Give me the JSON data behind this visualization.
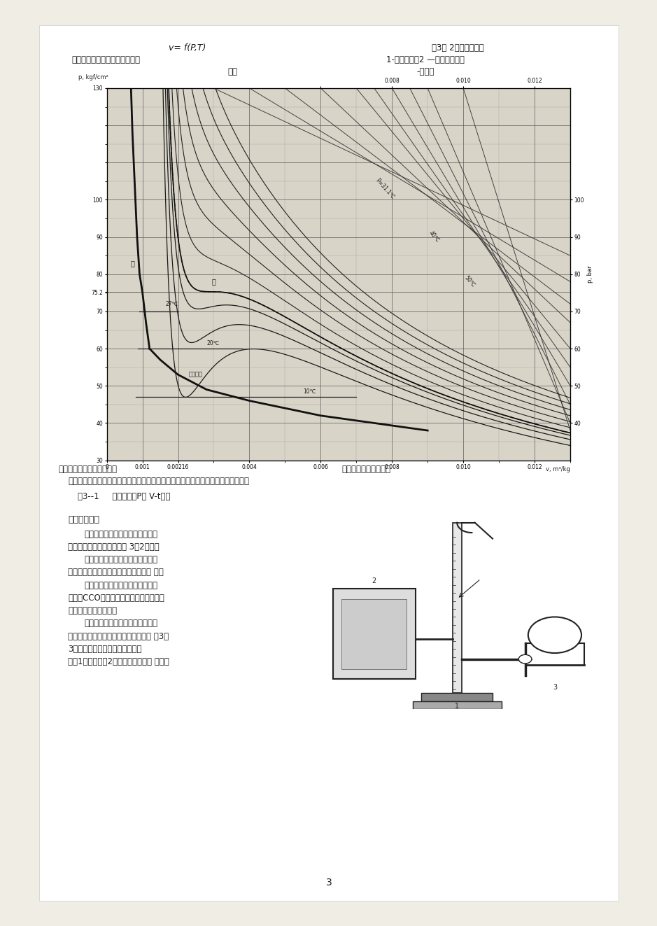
{
  "page_width": 9.2,
  "page_height": 13.03,
  "page_bg": "#f0ede5",
  "content_bg": "white",
  "text_color": "#1a1a1a",
  "chart_bg": "#d8d4c8",
  "top_left_line1": "v= f(P,T)",
  "top_right_line1": "图3－ 2实验装置系统",
  "top_left_line2": "可见，保持任意一个参数恒定，",
  "top_right_line2": "1-压缩室本体2 —活塞式压力计",
  "top_center_line3": "测出",
  "top_right_line3": "-恒温器",
  "caption_below_chart": "其余两个参数之间的关系，",
  "caption_below_chart2": "就可以求出工质状态变",
  "caption_line2": "化规律。如维持温度不变，测定比容与压力的对应数値，就可以得到等温线的数据。",
  "fig_caption": "图3--1     二氧化碳的P－ V-t关系",
  "sec4_title": "四、实验设备",
  "sec4_texts": [
    "实验设备：由压缩室本体、恒温器",
    "及活塞式压力计组成，如图 3－2所示。",
    "活塞式压力计：由手轮带动活塞杆",
    "的进退调节油压，提供实验中所需的压 力。",
    "恒温器：提供恒温水，用恒温水再",
    "去恒定CCO的温度。保持实验中在不同等",
    "级的等温过程中进行。",
    "压缩室本体：压缩气体的压缩室本",
    "体由一根玻璃毛细管和水銀室组成，如 图3－",
    "3所示。预先尴度和充气的玻璃毛",
    "细版1插入水銀判2中，再打开玻璃管 下口。"
  ],
  "page_number": "3"
}
